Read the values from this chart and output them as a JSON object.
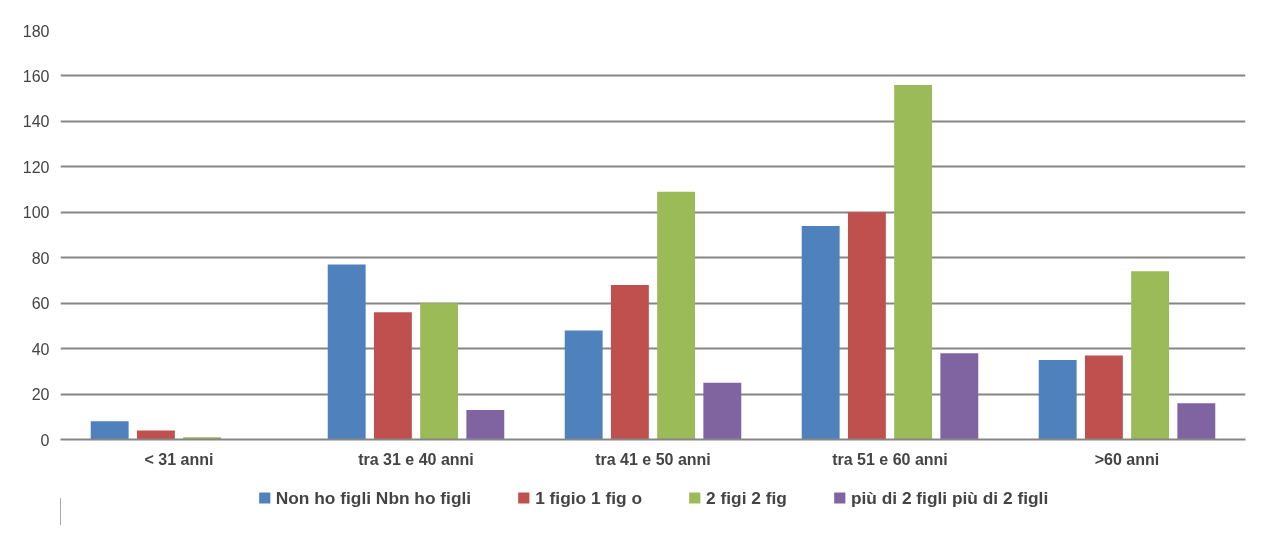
{
  "chart_data": {
    "type": "bar",
    "categories": [
      "< 31 anni",
      "tra 31 e 40 anni",
      "tra 41 e 50 anni",
      "tra 51 e 60 anni",
      ">60 anni"
    ],
    "series": [
      {
        "name": "Non ho figli Nbn ho figli",
        "color": "#4f81bd",
        "values": [
          8,
          77,
          48,
          94,
          35
        ]
      },
      {
        "name": "1 figio 1 fig o",
        "color": "#c0504d",
        "values": [
          4,
          56,
          68,
          100,
          37
        ]
      },
      {
        "name": "2 figi 2 fig",
        "color": "#9bbb59",
        "values": [
          1,
          60,
          109,
          156,
          74
        ]
      },
      {
        "name": "più di 2 figli più di 2 figli",
        "color": "#8064a2",
        "values": [
          0,
          13,
          25,
          38,
          16
        ]
      }
    ],
    "ylim": [
      0,
      180
    ],
    "yticks": [
      0,
      20,
      40,
      60,
      80,
      100,
      120,
      140,
      160,
      180
    ],
    "grid": "y",
    "legend": "bottom"
  }
}
